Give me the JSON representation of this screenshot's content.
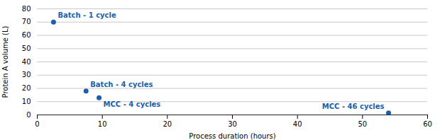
{
  "chart_data": {
    "type": "scatter",
    "x": [
      2.5,
      7.5,
      9.5,
      54
    ],
    "values": [
      70,
      18,
      13,
      1.5
    ],
    "labels": [
      "Batch - 1 cycle",
      "Batch - 4 cycles",
      "MCC - 4 cycles",
      "MCC - 46 cycles"
    ],
    "color": "#1B5FAA",
    "xlabel": "Process duration (hours)",
    "ylabel": "Protein A volume (L)",
    "xlim": [
      0,
      60
    ],
    "ylim": [
      0,
      80
    ],
    "xticks": [
      0,
      10,
      20,
      30,
      40,
      50,
      60
    ],
    "yticks": [
      0,
      10,
      20,
      30,
      40,
      50,
      60,
      70,
      80
    ],
    "grid": true
  }
}
